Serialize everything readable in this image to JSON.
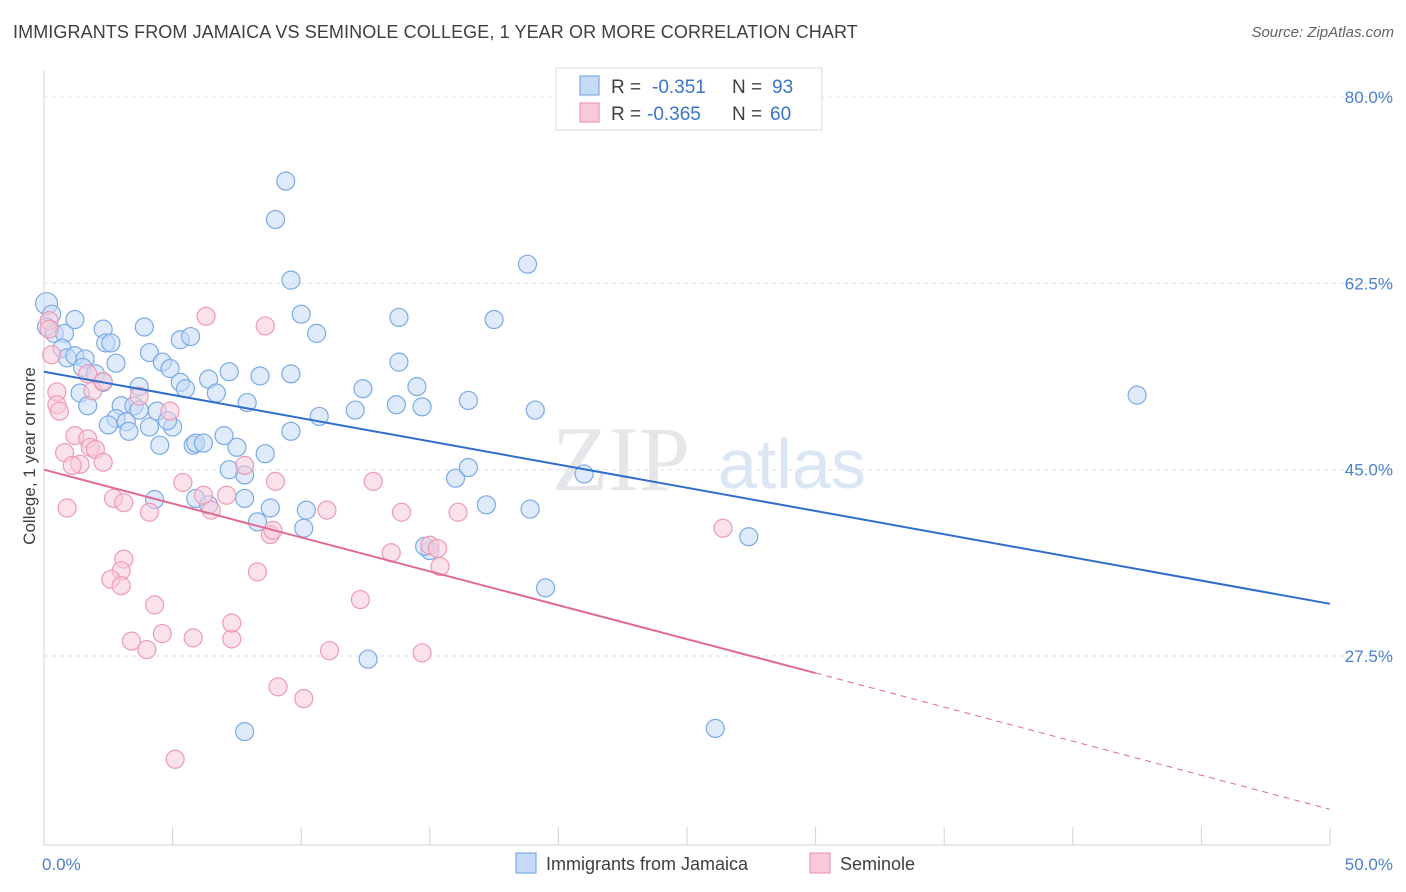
{
  "title": "IMMIGRANTS FROM JAMAICA VS SEMINOLE COLLEGE, 1 YEAR OR MORE CORRELATION CHART",
  "source": "Source: ZipAtlas.com",
  "watermark": {
    "zip": "ZIP",
    "atlas": "atlas"
  },
  "chart_data": {
    "type": "scatter",
    "xlabel": "",
    "ylabel": "College, 1 year or more",
    "xlim": [
      0,
      50
    ],
    "ylim": [
      12,
      82
    ],
    "x_tick_labels": [
      {
        "value": 0,
        "label": "0.0%"
      },
      {
        "value": 50,
        "label": "50.0%"
      }
    ],
    "y_tick_labels": [
      {
        "value": 80,
        "label": "80.0%"
      },
      {
        "value": 62.5,
        "label": "62.5%"
      },
      {
        "value": 45,
        "label": "45.0%"
      },
      {
        "value": 27.5,
        "label": "27.5%"
      }
    ],
    "grid": true,
    "legend_placement": "top-center",
    "legend": [
      {
        "r_label": "R =",
        "r_value": "-0.351",
        "n_label": "N =",
        "n_value": "93"
      },
      {
        "r_label": "R =",
        "r_value": "-0.365",
        "n_label": "N =",
        "n_value": "60"
      }
    ],
    "series": [
      {
        "name": "Immigrants from Jamaica",
        "color": "#7aaae6",
        "fill": "#c5dbf5",
        "line_color": "#2f6ecc",
        "trend": {
          "x0": 0,
          "y0": 54.2,
          "x1": 50,
          "y1": 32.4
        },
        "points": [
          [
            0.1,
            60.6
          ],
          [
            0.3,
            59.6
          ],
          [
            0.1,
            58.4
          ],
          [
            0.4,
            57.8
          ],
          [
            0.8,
            57.8
          ],
          [
            0.7,
            56.4
          ],
          [
            0.9,
            55.5
          ],
          [
            1.2,
            55.7
          ],
          [
            1.6,
            55.4
          ],
          [
            1.5,
            54.6
          ],
          [
            1.2,
            59.1
          ],
          [
            2.3,
            58.2
          ],
          [
            2.4,
            56.9
          ],
          [
            2.6,
            56.9
          ],
          [
            2.8,
            55.0
          ],
          [
            3.9,
            58.4
          ],
          [
            4.1,
            56.0
          ],
          [
            4.6,
            55.1
          ],
          [
            4.9,
            54.5
          ],
          [
            5.3,
            57.2
          ],
          [
            5.7,
            57.5
          ],
          [
            2.0,
            54.0
          ],
          [
            2.3,
            53.2
          ],
          [
            1.4,
            52.2
          ],
          [
            1.7,
            51.0
          ],
          [
            3.7,
            52.8
          ],
          [
            5.3,
            53.2
          ],
          [
            5.5,
            52.6
          ],
          [
            6.4,
            53.5
          ],
          [
            7.2,
            54.2
          ],
          [
            8.4,
            53.8
          ],
          [
            9.6,
            54.0
          ],
          [
            6.7,
            52.2
          ],
          [
            7.9,
            51.3
          ],
          [
            12.4,
            52.6
          ],
          [
            13.8,
            55.1
          ],
          [
            14.5,
            52.8
          ],
          [
            3.0,
            51.0
          ],
          [
            3.5,
            51.0
          ],
          [
            2.8,
            49.8
          ],
          [
            3.2,
            49.5
          ],
          [
            4.4,
            50.5
          ],
          [
            4.1,
            49.0
          ],
          [
            5.0,
            49.0
          ],
          [
            4.8,
            49.6
          ],
          [
            3.3,
            48.6
          ],
          [
            4.5,
            47.3
          ],
          [
            5.8,
            47.3
          ],
          [
            5.9,
            47.5
          ],
          [
            7.5,
            47.1
          ],
          [
            7.0,
            48.2
          ],
          [
            8.6,
            46.5
          ],
          [
            9.6,
            48.6
          ],
          [
            10.7,
            50.0
          ],
          [
            12.1,
            50.6
          ],
          [
            13.7,
            51.1
          ],
          [
            14.7,
            50.9
          ],
          [
            16.5,
            51.5
          ],
          [
            19.1,
            50.6
          ],
          [
            17.5,
            59.1
          ],
          [
            18.8,
            64.3
          ],
          [
            13.8,
            59.3
          ],
          [
            10.6,
            57.8
          ],
          [
            10.0,
            59.6
          ],
          [
            9.6,
            62.8
          ],
          [
            9.0,
            68.5
          ],
          [
            9.4,
            72.1
          ],
          [
            7.8,
            44.5
          ],
          [
            7.8,
            42.3
          ],
          [
            7.2,
            45.0
          ],
          [
            8.3,
            40.1
          ],
          [
            8.8,
            41.4
          ],
          [
            10.2,
            41.2
          ],
          [
            10.1,
            39.5
          ],
          [
            5.9,
            42.3
          ],
          [
            6.4,
            41.7
          ],
          [
            4.3,
            42.2
          ],
          [
            16.0,
            44.2
          ],
          [
            16.5,
            45.2
          ],
          [
            17.2,
            41.7
          ],
          [
            21.0,
            44.6
          ],
          [
            18.9,
            41.3
          ],
          [
            15.0,
            37.4
          ],
          [
            14.8,
            37.8
          ],
          [
            19.5,
            33.9
          ],
          [
            12.6,
            27.2
          ],
          [
            7.8,
            20.4
          ],
          [
            26.1,
            20.7
          ],
          [
            27.4,
            38.7
          ],
          [
            42.5,
            52.0
          ],
          [
            3.7,
            50.6
          ],
          [
            6.2,
            47.5
          ],
          [
            2.5,
            49.2
          ]
        ]
      },
      {
        "name": "Seminole",
        "color": "#ee9ab5",
        "fill": "#f8cbd8",
        "line_color": "#e06a96",
        "trend": {
          "x0": 0,
          "y0": 45.0,
          "x1": 30,
          "y1": 25.9
        },
        "trend_dashed": {
          "x0": 30,
          "y0": 25.9,
          "x1": 50,
          "y1": 13.1
        },
        "points": [
          [
            0.2,
            59.0
          ],
          [
            0.2,
            58.2
          ],
          [
            0.3,
            55.8
          ],
          [
            0.5,
            52.3
          ],
          [
            0.5,
            51.1
          ],
          [
            0.6,
            50.5
          ],
          [
            1.7,
            54.0
          ],
          [
            1.9,
            52.4
          ],
          [
            2.3,
            53.3
          ],
          [
            3.7,
            51.9
          ],
          [
            4.9,
            50.5
          ],
          [
            8.6,
            58.5
          ],
          [
            6.3,
            59.4
          ],
          [
            1.2,
            48.2
          ],
          [
            1.7,
            47.9
          ],
          [
            0.8,
            46.6
          ],
          [
            1.8,
            47.1
          ],
          [
            2.0,
            46.9
          ],
          [
            2.3,
            45.7
          ],
          [
            1.4,
            45.5
          ],
          [
            1.1,
            45.4
          ],
          [
            0.9,
            41.4
          ],
          [
            2.7,
            42.3
          ],
          [
            3.1,
            41.9
          ],
          [
            4.1,
            41.0
          ],
          [
            5.4,
            43.8
          ],
          [
            6.2,
            42.6
          ],
          [
            6.5,
            41.2
          ],
          [
            7.1,
            42.6
          ],
          [
            7.8,
            45.4
          ],
          [
            8.8,
            38.9
          ],
          [
            8.9,
            39.3
          ],
          [
            11.0,
            41.2
          ],
          [
            12.8,
            43.9
          ],
          [
            13.9,
            41.0
          ],
          [
            15.0,
            37.9
          ],
          [
            15.3,
            37.6
          ],
          [
            16.1,
            41.0
          ],
          [
            13.5,
            37.2
          ],
          [
            15.4,
            35.9
          ],
          [
            8.3,
            35.4
          ],
          [
            3.1,
            36.6
          ],
          [
            3.0,
            35.5
          ],
          [
            2.6,
            34.7
          ],
          [
            3.0,
            34.1
          ],
          [
            4.3,
            32.3
          ],
          [
            4.6,
            29.6
          ],
          [
            5.8,
            29.2
          ],
          [
            7.3,
            29.1
          ],
          [
            7.3,
            30.6
          ],
          [
            3.4,
            28.9
          ],
          [
            4.0,
            28.1
          ],
          [
            11.1,
            28.0
          ],
          [
            14.7,
            27.8
          ],
          [
            12.3,
            32.8
          ],
          [
            9.1,
            24.6
          ],
          [
            10.1,
            23.5
          ],
          [
            5.1,
            17.8
          ],
          [
            26.4,
            39.5
          ],
          [
            9.0,
            43.9
          ]
        ]
      }
    ]
  }
}
